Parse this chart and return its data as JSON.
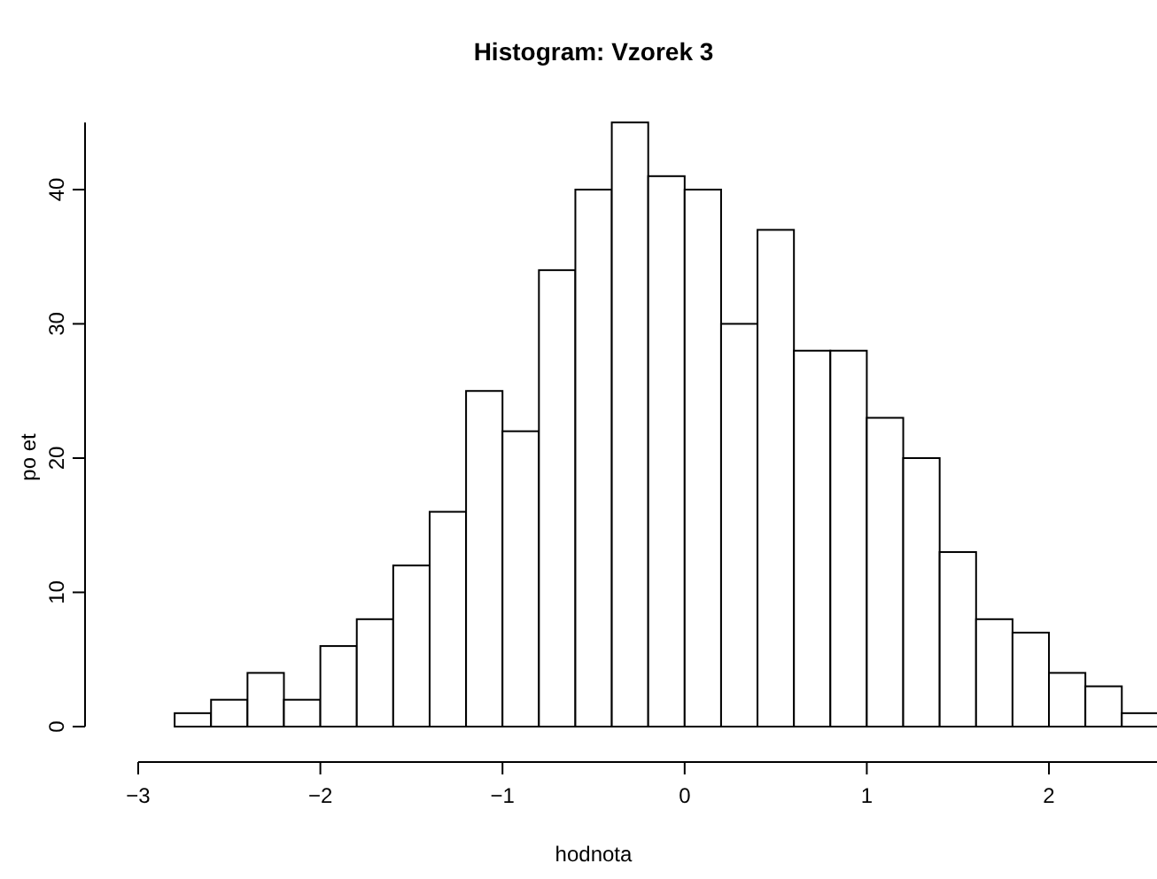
{
  "chart_data": {
    "type": "histogram",
    "title": "Histogram: Vzorek 3",
    "xlabel": "hodnota",
    "ylabel": "po et",
    "bins": [
      -2.8,
      -2.6,
      -2.4,
      -2.2,
      -2.0,
      -1.8,
      -1.6,
      -1.4,
      -1.2,
      -1.0,
      -0.8,
      -0.6,
      -0.4,
      -0.2,
      0.0,
      0.2,
      0.4,
      0.6,
      0.8,
      1.0,
      1.2,
      1.4,
      1.6,
      1.8,
      2.0,
      2.2,
      2.4,
      2.6
    ],
    "values": [
      1,
      2,
      4,
      2,
      6,
      8,
      12,
      16,
      25,
      22,
      34,
      40,
      45,
      41,
      40,
      30,
      37,
      28,
      28,
      23,
      20,
      13,
      8,
      7,
      4,
      3,
      1
    ],
    "color": "#ffffff",
    "xlim": [
      -3,
      2.6
    ],
    "xticks": [
      {
        "value": -3,
        "label": "−3"
      },
      {
        "value": -2,
        "label": "−2"
      },
      {
        "value": -1,
        "label": "−1"
      },
      0,
      1,
      2
    ],
    "ylim": [
      0,
      45
    ],
    "yticks": [
      0,
      10,
      20,
      30,
      40
    ],
    "grid": false
  }
}
